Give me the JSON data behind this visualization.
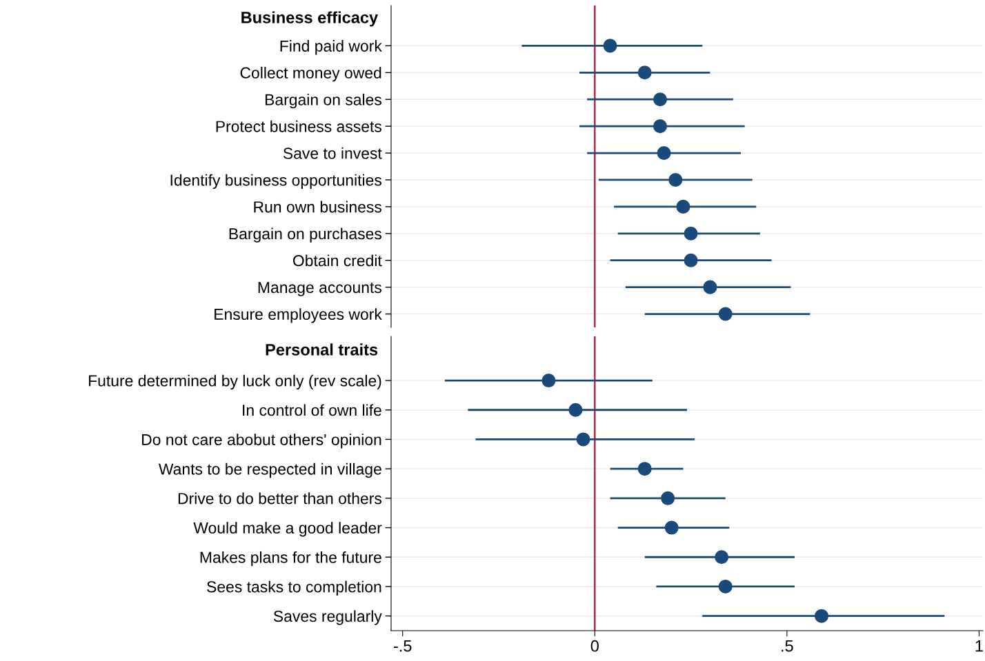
{
  "chart_data": [
    {
      "type": "scatter",
      "title": "Business efficacy",
      "orientation": "horizontal",
      "tick_labels": "y",
      "grid": "y",
      "marker": "circle",
      "legend": false,
      "categories": [
        "Find paid work",
        "Collect money owed",
        "Bargain on sales",
        "Protect business assets",
        "Save to invest",
        "Identify business opportunities",
        "Run own business",
        "Bargain on purchases",
        "Obtain credit",
        "Manage accounts",
        "Ensure employees work"
      ],
      "series": [
        {
          "color": "#1a4a7a",
          "values": [
            0.04,
            0.13,
            0.17,
            0.17,
            0.18,
            0.21,
            0.23,
            0.25,
            0.25,
            0.3,
            0.34
          ],
          "errors": [
            [
              -0.19,
              0.28
            ],
            [
              -0.04,
              0.3
            ],
            [
              -0.02,
              0.36
            ],
            [
              -0.04,
              0.39
            ],
            [
              -0.02,
              0.38
            ],
            [
              0.01,
              0.41
            ],
            [
              0.05,
              0.42
            ],
            [
              0.06,
              0.43
            ],
            [
              0.04,
              0.46
            ],
            [
              0.08,
              0.51
            ],
            [
              0.13,
              0.56
            ]
          ]
        }
      ],
      "xlim": [
        -0.53,
        1.01
      ],
      "ref_lines": [
        {
          "axis": "x",
          "value": 0,
          "color": "#c8204a"
        }
      ]
    },
    {
      "type": "scatter",
      "title": "Personal traits",
      "orientation": "horizontal",
      "grid": "y",
      "marker": "circle",
      "legend": false,
      "categories": [
        "Future determined by luck only (rev scale)",
        "In control of own life",
        "Do not care abobut others' opinion",
        "Wants to be respected in village",
        "Drive to do better than others",
        "Would make a good leader",
        "Makes plans for the future",
        "Sees tasks to completion",
        "Saves regularly"
      ],
      "series": [
        {
          "color": "#1a4a7a",
          "values": [
            -0.12,
            -0.05,
            -0.03,
            0.13,
            0.19,
            0.2,
            0.33,
            0.34,
            0.59
          ],
          "errors": [
            [
              -0.39,
              0.15
            ],
            [
              -0.33,
              0.24
            ],
            [
              -0.31,
              0.26
            ],
            [
              0.04,
              0.23
            ],
            [
              0.04,
              0.34
            ],
            [
              0.06,
              0.35
            ],
            [
              0.13,
              0.52
            ],
            [
              0.16,
              0.52
            ],
            [
              0.28,
              0.91
            ]
          ]
        }
      ],
      "xlim": [
        -0.53,
        1.01
      ],
      "xticks": [
        {
          "value": -0.5,
          "label": "-.5"
        },
        0,
        {
          "value": 0.5,
          "label": ".5"
        },
        1
      ],
      "ref_lines": [
        {
          "axis": "x",
          "value": 0,
          "color": "#c8204a"
        }
      ]
    }
  ]
}
